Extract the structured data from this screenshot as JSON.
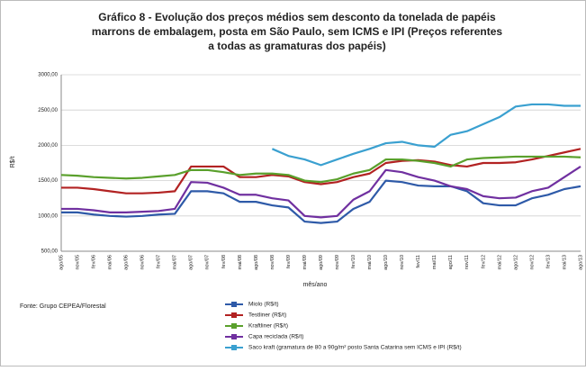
{
  "chart_data": {
    "type": "line",
    "title": "Gráfico 8 - Evolução dos preços médios sem desconto da tonelada de papéis",
    "subtitle": [
      "marrons de embalagem, posta em São Paulo, sem ICMS e IPI (Preços referentes",
      "a todas as gramaturas dos papéis)"
    ],
    "ylabel": "R$/t",
    "xlabel": "mês/ano",
    "source": "Fonte: Grupo CEPEA/Florestal",
    "categories": [
      "ago/05",
      "nov/05",
      "fev/06",
      "mai/06",
      "ago/06",
      "nov/06",
      "fev/07",
      "mai/07",
      "ago/07",
      "nov/07",
      "fev/08",
      "mai/08",
      "ago/08",
      "nov/08",
      "fev/09",
      "mai/09",
      "ago/09",
      "nov/09",
      "fev/10",
      "mai/10",
      "ago/10",
      "nov/10",
      "fev/11",
      "mai/11",
      "ago/11",
      "nov/11",
      "fev/12",
      "mai/12",
      "ago/12",
      "nov/12",
      "fev/13",
      "mai/13",
      "ago/13"
    ],
    "ylim": [
      500,
      3000
    ],
    "yticks": [
      {
        "value": 500,
        "label": "500,00"
      },
      {
        "value": 1000,
        "label": "1000,00"
      },
      {
        "value": 1500,
        "label": "1500,00"
      },
      {
        "value": 2000,
        "label": "2000,00"
      },
      {
        "value": 2500,
        "label": "2500,00"
      },
      {
        "value": 3000,
        "label": "3000,00"
      }
    ],
    "grid": true,
    "series": [
      {
        "name": "Miolo (R$/t)",
        "color": "#2e5aa8",
        "values": [
          1050,
          1050,
          1020,
          1000,
          990,
          1000,
          1020,
          1030,
          1350,
          1350,
          1320,
          1200,
          1200,
          1150,
          1120,
          920,
          900,
          920,
          1100,
          1200,
          1500,
          1480,
          1430,
          1420,
          1420,
          1350,
          1180,
          1150,
          1150,
          1250,
          1300,
          1380,
          1420
        ]
      },
      {
        "name": "Testliner (R$/t)",
        "color": "#b22222",
        "values": [
          1400,
          1400,
          1380,
          1350,
          1320,
          1320,
          1330,
          1350,
          1700,
          1700,
          1700,
          1550,
          1550,
          1580,
          1560,
          1480,
          1450,
          1480,
          1550,
          1600,
          1750,
          1780,
          1790,
          1770,
          1720,
          1700,
          1750,
          1750,
          1760,
          1800,
          1850,
          1900,
          1950
        ]
      },
      {
        "name": "Kraftliner (R$/t)",
        "color": "#5aa02c",
        "values": [
          1580,
          1570,
          1550,
          1540,
          1530,
          1540,
          1560,
          1580,
          1650,
          1650,
          1620,
          1580,
          1600,
          1600,
          1580,
          1500,
          1480,
          1520,
          1600,
          1650,
          1800,
          1800,
          1780,
          1750,
          1700,
          1800,
          1820,
          1830,
          1840,
          1840,
          1840,
          1840,
          1830
        ]
      },
      {
        "name": "Capa reciclada (R$/t)",
        "color": "#7030a0",
        "values": [
          1100,
          1100,
          1080,
          1050,
          1050,
          1060,
          1070,
          1100,
          1480,
          1470,
          1400,
          1300,
          1300,
          1250,
          1220,
          1000,
          980,
          1000,
          1230,
          1350,
          1650,
          1620,
          1550,
          1500,
          1420,
          1380,
          1280,
          1250,
          1260,
          1350,
          1400,
          1550,
          1700
        ]
      },
      {
        "name": "Saco kraft (gramatura de 80 a 90g/m² posto Santa Catarina sem ICMS e IPI (R$/t)",
        "color": "#3aa0d0",
        "values": [
          null,
          null,
          null,
          null,
          null,
          null,
          null,
          null,
          null,
          null,
          null,
          null,
          null,
          1950,
          1850,
          1800,
          1720,
          1800,
          1880,
          1950,
          2030,
          2050,
          2000,
          1980,
          2150,
          2200,
          2300,
          2400,
          2550,
          2580,
          2580,
          2560,
          2560
        ]
      }
    ]
  }
}
